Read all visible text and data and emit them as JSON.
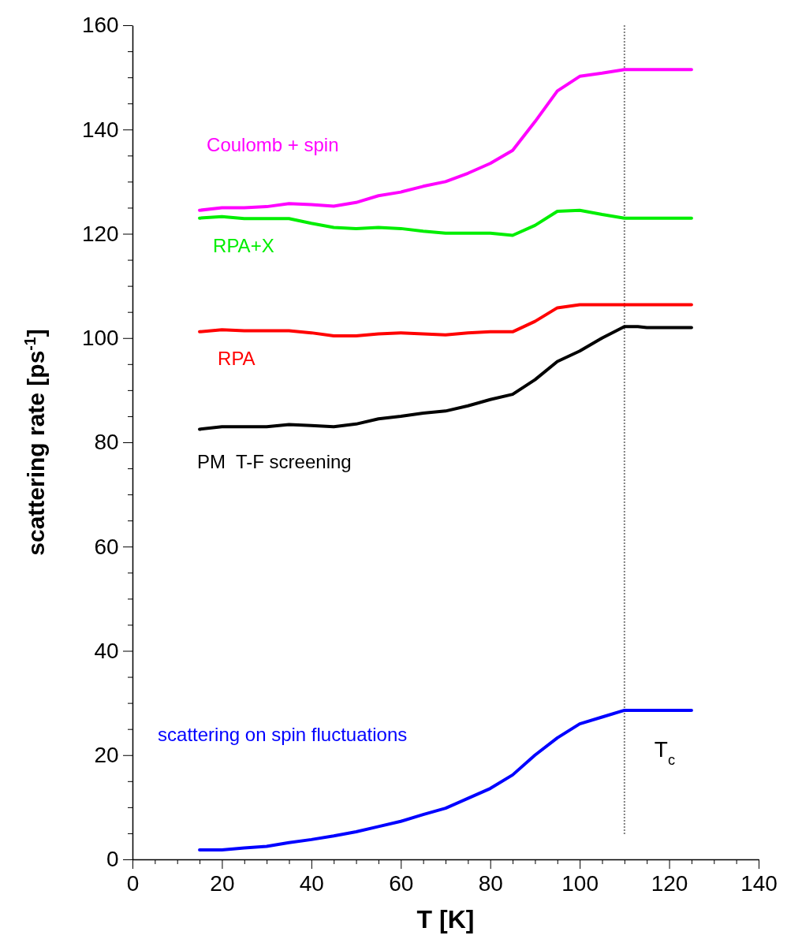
{
  "chart_data": {
    "type": "line",
    "xlabel": "T [K]",
    "ylabel": "scattering rate [ps$^{-1}$]",
    "xlim": [
      0,
      140
    ],
    "ylim": [
      0,
      160
    ],
    "xticks": [
      0,
      {
        "value": 5,
        "label": null
      },
      {
        "value": 10,
        "label": null
      },
      {
        "value": 15,
        "label": null
      },
      20,
      {
        "value": 25,
        "label": null
      },
      {
        "value": 30,
        "label": null
      },
      {
        "value": 35,
        "label": null
      },
      40,
      {
        "value": 45,
        "label": null
      },
      {
        "value": 50,
        "label": null
      },
      {
        "value": 55,
        "label": null
      },
      60,
      {
        "value": 65,
        "label": null
      },
      {
        "value": 70,
        "label": null
      },
      {
        "value": 75,
        "label": null
      },
      80,
      {
        "value": 85,
        "label": null
      },
      {
        "value": 90,
        "label": null
      },
      {
        "value": 95,
        "label": null
      },
      100,
      {
        "value": 105,
        "label": null
      },
      {
        "value": 110,
        "label": null
      },
      {
        "value": 115,
        "label": null
      },
      120,
      {
        "value": 125,
        "label": null
      },
      {
        "value": 130,
        "label": null
      },
      {
        "value": 135,
        "label": null
      },
      140
    ],
    "yticks": [
      0,
      {
        "value": 5,
        "label": null
      },
      {
        "value": 10,
        "label": null
      },
      {
        "value": 15,
        "label": null
      },
      20,
      {
        "value": 25,
        "label": null
      },
      {
        "value": 30,
        "label": null
      },
      {
        "value": 35,
        "label": null
      },
      40,
      {
        "value": 45,
        "label": null
      },
      {
        "value": 50,
        "label": null
      },
      {
        "value": 55,
        "label": null
      },
      60,
      {
        "value": 65,
        "label": null
      },
      {
        "value": 70,
        "label": null
      },
      {
        "value": 75,
        "label": null
      },
      80,
      {
        "value": 85,
        "label": null
      },
      {
        "value": 90,
        "label": null
      },
      {
        "value": 95,
        "label": null
      },
      100,
      {
        "value": 105,
        "label": null
      },
      {
        "value": 110,
        "label": null
      },
      {
        "value": 115,
        "label": null
      },
      120,
      {
        "value": 125,
        "label": null
      },
      {
        "value": 130,
        "label": null
      },
      {
        "value": 135,
        "label": null
      },
      140,
      {
        "value": 145,
        "label": null
      },
      {
        "value": 150,
        "label": null
      },
      {
        "value": 155,
        "label": null
      },
      160
    ],
    "grid": false,
    "marker": "none",
    "line_style": "solid",
    "ref_lines": [
      {
        "axis": "x",
        "value": 110,
        "label": "T$_{c}$",
        "color": "#808080",
        "line_style": "dotted"
      }
    ],
    "series": [
      {
        "name": "Coulomb + spin",
        "color": "#ff00ff",
        "x": [
          15,
          20,
          25,
          30,
          35,
          40,
          45,
          50,
          55,
          60,
          65,
          70,
          75,
          80,
          85,
          90,
          95,
          100,
          105,
          110,
          125
        ],
        "values": [
          124.5,
          125,
          125,
          125.2,
          125.8,
          125.6,
          125.3,
          126,
          127.3,
          128,
          129.1,
          130,
          131.6,
          133.5,
          136,
          141.5,
          147.4,
          150.2,
          150.8,
          151.5,
          151.5
        ]
      },
      {
        "name": "RPA+X",
        "color": "#00ee00",
        "x": [
          15,
          20,
          25,
          30,
          35,
          40,
          45,
          50,
          55,
          60,
          65,
          70,
          75,
          80,
          85,
          90,
          95,
          100,
          105,
          110,
          125
        ],
        "values": [
          123,
          123.3,
          122.9,
          122.9,
          122.9,
          122,
          121.2,
          121,
          121.2,
          121,
          120.5,
          120.1,
          120.1,
          120.1,
          119.7,
          121.6,
          124.3,
          124.5,
          123.7,
          123,
          123
        ]
      },
      {
        "name": "RPA",
        "color": "#ff0000",
        "x": [
          15,
          20,
          25,
          30,
          35,
          40,
          45,
          50,
          55,
          60,
          65,
          70,
          75,
          80,
          85,
          90,
          95,
          100,
          110,
          125
        ],
        "values": [
          101.2,
          101.6,
          101.4,
          101.4,
          101.4,
          101,
          100.4,
          100.4,
          100.8,
          101,
          100.8,
          100.6,
          101,
          101.2,
          101.2,
          103.2,
          105.8,
          106.4,
          106.4,
          106.4
        ]
      },
      {
        "name": "PM  T-F screening",
        "color": "#000000",
        "x": [
          15,
          20,
          30,
          35,
          40,
          45,
          50,
          55,
          60,
          65,
          70,
          75,
          80,
          85,
          90,
          95,
          100,
          105,
          110,
          113,
          115,
          125
        ],
        "values": [
          82.5,
          83,
          83,
          83.4,
          83.2,
          83,
          83.5,
          84.5,
          85,
          85.6,
          86,
          87,
          88.2,
          89.2,
          92,
          95.5,
          97.5,
          100,
          102.2,
          102.2,
          102,
          102
        ]
      },
      {
        "name": "scattering on spin fluctuations",
        "color": "#0000ff",
        "x": [
          15,
          20,
          25,
          30,
          35,
          40,
          45,
          50,
          55,
          60,
          65,
          70,
          75,
          80,
          85,
          90,
          95,
          100,
          105,
          110,
          125
        ],
        "values": [
          1.8,
          1.8,
          2.2,
          2.5,
          3.2,
          3.8,
          4.5,
          5.3,
          6.3,
          7.3,
          8.6,
          9.8,
          11.7,
          13.6,
          16.2,
          20,
          23.3,
          26,
          27.3,
          28.6,
          28.6
        ]
      }
    ]
  }
}
